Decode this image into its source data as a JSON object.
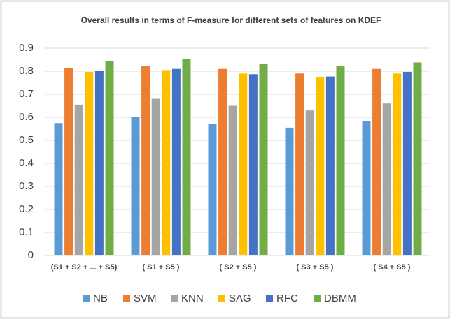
{
  "chart_data": {
    "type": "bar",
    "title": "Overall results in terms of F-measure for different sets of features on KDEF",
    "categories": [
      "(S1 + S2 + ... + S5)",
      "( S1 + S5 )",
      "( S2 + S5 )",
      "( S3 + S5 )",
      "( S4 + S5 )"
    ],
    "series": [
      {
        "name": "NB",
        "color": "#5b9bd5",
        "values": [
          0.575,
          0.6,
          0.572,
          0.555,
          0.585
        ]
      },
      {
        "name": "SVM",
        "color": "#ed7d31",
        "values": [
          0.815,
          0.823,
          0.81,
          0.79,
          0.81
        ]
      },
      {
        "name": "KNN",
        "color": "#a5a5a5",
        "values": [
          0.655,
          0.68,
          0.65,
          0.63,
          0.66
        ]
      },
      {
        "name": "SAG",
        "color": "#ffc000",
        "values": [
          0.797,
          0.805,
          0.79,
          0.775,
          0.79
        ]
      },
      {
        "name": "RFC",
        "color": "#4472c4",
        "values": [
          0.802,
          0.81,
          0.787,
          0.777,
          0.797
        ]
      },
      {
        "name": "DBMM",
        "color": "#70ad47",
        "values": [
          0.845,
          0.852,
          0.832,
          0.822,
          0.838
        ]
      }
    ],
    "ylim": [
      0,
      0.9
    ],
    "yticks": [
      0,
      0.1,
      0.2,
      0.3,
      0.4,
      0.5,
      0.6,
      0.7,
      0.8,
      0.9
    ],
    "grid": true,
    "legend": "bottom"
  }
}
